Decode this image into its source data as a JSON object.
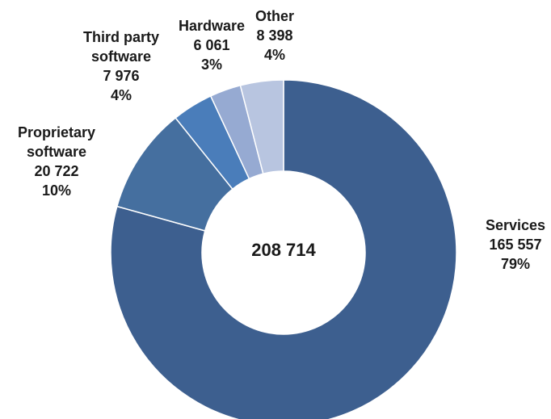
{
  "chart_data": {
    "type": "pie",
    "variant": "donut",
    "total_label": "208 714",
    "slices": [
      {
        "name": "Services",
        "value": 165557,
        "value_label": "165 557",
        "percent_label": "79%",
        "color": "#3d5f8f",
        "label_lines": [
          "Services"
        ]
      },
      {
        "name": "Proprietary software",
        "value": 20722,
        "value_label": "20 722",
        "percent_label": "10%",
        "color": "#456f9f",
        "label_lines": [
          "Proprietary",
          "software"
        ]
      },
      {
        "name": "Third party software",
        "value": 7976,
        "value_label": "7 976",
        "percent_label": "4%",
        "color": "#4a7dba",
        "label_lines": [
          "Third party",
          "software"
        ]
      },
      {
        "name": "Hardware",
        "value": 6061,
        "value_label": "6 061",
        "percent_label": "3%",
        "color": "#96aad2",
        "label_lines": [
          "Hardware"
        ]
      },
      {
        "name": "Other",
        "value": 8398,
        "value_label": "8 398",
        "percent_label": "4%",
        "color": "#b8c5e0",
        "label_lines": [
          "Other"
        ]
      }
    ]
  }
}
